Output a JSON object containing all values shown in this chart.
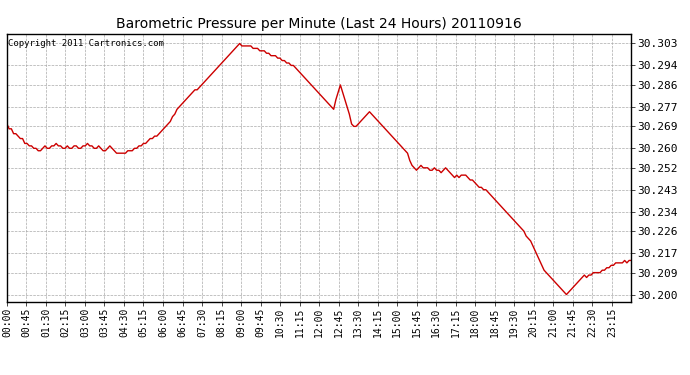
{
  "title": "Barometric Pressure per Minute (Last 24 Hours) 20110916",
  "copyright": "Copyright 2011 Cartronics.com",
  "line_color": "#cc0000",
  "background_color": "#ffffff",
  "grid_color": "#aaaaaa",
  "yticks": [
    30.2,
    30.209,
    30.217,
    30.226,
    30.234,
    30.243,
    30.252,
    30.26,
    30.269,
    30.277,
    30.286,
    30.294,
    30.303
  ],
  "ylim": [
    30.197,
    30.307
  ],
  "xtick_labels": [
    "00:00",
    "00:45",
    "01:30",
    "02:15",
    "03:00",
    "03:45",
    "04:30",
    "05:15",
    "06:00",
    "06:45",
    "07:30",
    "08:15",
    "09:00",
    "09:45",
    "10:30",
    "11:15",
    "12:00",
    "12:45",
    "13:30",
    "14:15",
    "15:00",
    "15:45",
    "16:30",
    "17:15",
    "18:00",
    "18:45",
    "19:30",
    "20:15",
    "21:00",
    "21:45",
    "22:30",
    "23:15"
  ],
  "pressure_profile": [
    30.27,
    30.268,
    30.268,
    30.266,
    30.266,
    30.265,
    30.264,
    30.264,
    30.262,
    30.262,
    30.261,
    30.261,
    30.26,
    30.26,
    30.259,
    30.259,
    30.26,
    30.261,
    30.26,
    30.26,
    30.261,
    30.261,
    30.262,
    30.261,
    30.261,
    30.26,
    30.26,
    30.261,
    30.26,
    30.26,
    30.261,
    30.261,
    30.26,
    30.26,
    30.261,
    30.261,
    30.262,
    30.261,
    30.261,
    30.26,
    30.26,
    30.261,
    30.26,
    30.259,
    30.259,
    30.26,
    30.261,
    30.26,
    30.259,
    30.258,
    30.258,
    30.258,
    30.258,
    30.258,
    30.259,
    30.259,
    30.259,
    30.26,
    30.26,
    30.261,
    30.261,
    30.262,
    30.262,
    30.263,
    30.264,
    30.264,
    30.265,
    30.265,
    30.266,
    30.267,
    30.268,
    30.269,
    30.27,
    30.271,
    30.273,
    30.274,
    30.276,
    30.277,
    30.278,
    30.279,
    30.28,
    30.281,
    30.282,
    30.283,
    30.284,
    30.284,
    30.285,
    30.286,
    30.287,
    30.288,
    30.289,
    30.29,
    30.291,
    30.292,
    30.293,
    30.294,
    30.295,
    30.296,
    30.297,
    30.298,
    30.299,
    30.3,
    30.301,
    30.302,
    30.303,
    30.302,
    30.302,
    30.302,
    30.302,
    30.302,
    30.301,
    30.301,
    30.301,
    30.3,
    30.3,
    30.3,
    30.299,
    30.299,
    30.298,
    30.298,
    30.298,
    30.297,
    30.297,
    30.296,
    30.296,
    30.295,
    30.295,
    30.294,
    30.294,
    30.293,
    30.292,
    30.291,
    30.29,
    30.289,
    30.288,
    30.287,
    30.286,
    30.285,
    30.284,
    30.283,
    30.282,
    30.281,
    30.28,
    30.279,
    30.278,
    30.277,
    30.276,
    30.28,
    30.283,
    30.286,
    30.283,
    30.28,
    30.277,
    30.274,
    30.27,
    30.269,
    30.269,
    30.27,
    30.271,
    30.272,
    30.273,
    30.274,
    30.275,
    30.274,
    30.273,
    30.272,
    30.271,
    30.27,
    30.269,
    30.268,
    30.267,
    30.266,
    30.265,
    30.264,
    30.263,
    30.262,
    30.261,
    30.26,
    30.259,
    30.258,
    30.255,
    30.253,
    30.252,
    30.251,
    30.252,
    30.253,
    30.252,
    30.252,
    30.252,
    30.251,
    30.251,
    30.252,
    30.251,
    30.251,
    30.25,
    30.251,
    30.252,
    30.251,
    30.25,
    30.249,
    30.248,
    30.249,
    30.248,
    30.249,
    30.249,
    30.249,
    30.248,
    30.247,
    30.247,
    30.246,
    30.245,
    30.244,
    30.244,
    30.243,
    30.243,
    30.242,
    30.241,
    30.24,
    30.239,
    30.238,
    30.237,
    30.236,
    30.235,
    30.234,
    30.233,
    30.232,
    30.231,
    30.23,
    30.229,
    30.228,
    30.227,
    30.226,
    30.224,
    30.223,
    30.222,
    30.22,
    30.218,
    30.216,
    30.214,
    30.212,
    30.21,
    30.209,
    30.208,
    30.207,
    30.206,
    30.205,
    30.204,
    30.203,
    30.202,
    30.201,
    30.2,
    30.201,
    30.202,
    30.203,
    30.204,
    30.205,
    30.206,
    30.207,
    30.208,
    30.207,
    30.208,
    30.208,
    30.209,
    30.209,
    30.209,
    30.209,
    30.21,
    30.21,
    30.211,
    30.211,
    30.212,
    30.212,
    30.213,
    30.213,
    30.213,
    30.213,
    30.214,
    30.213,
    30.214,
    30.214
  ]
}
